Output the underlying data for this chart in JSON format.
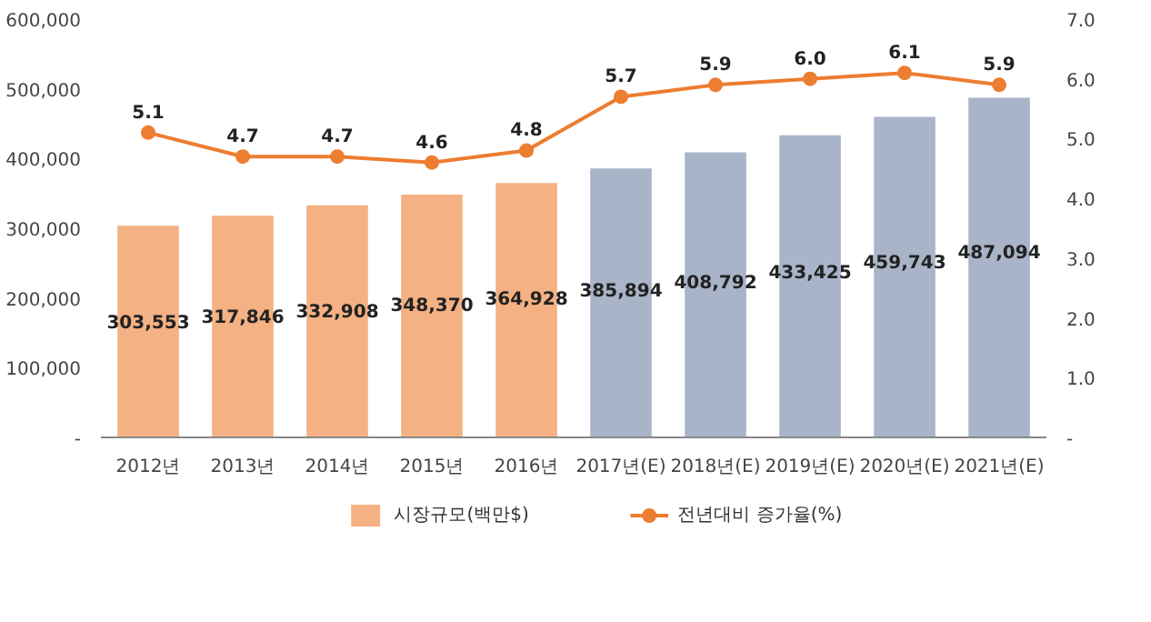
{
  "chart_data": {
    "type": "bar",
    "categories": [
      "2012년",
      "2013년",
      "2014년",
      "2015년",
      "2016년",
      "2017년(E)",
      "2018년(E)",
      "2019년(E)",
      "2020년(E)",
      "2021년(E)"
    ],
    "series": [
      {
        "name": "시장규모(백만$)",
        "color": "#f4b183",
        "colors": [
          "#f4b183",
          "#f4b183",
          "#f4b183",
          "#f4b183",
          "#f4b183",
          "#a9b4c8",
          "#a9b4c8",
          "#a9b4c8",
          "#a9b4c8",
          "#a9b4c8"
        ],
        "values": [
          303553,
          317846,
          332908,
          348370,
          364928,
          385894,
          408792,
          433425,
          459743,
          487094
        ],
        "value_labels": [
          "303,553",
          "317,846",
          "332,908",
          "348,370",
          "364,928",
          "385,894",
          "408,792",
          "433,425",
          "459,743",
          "487,094"
        ]
      },
      {
        "name": "전년대비 증가율(%)",
        "type": "line",
        "axis": "y2",
        "color": "#ed7d31",
        "values": [
          5.1,
          4.7,
          4.7,
          4.6,
          4.8,
          5.7,
          5.9,
          6.0,
          6.1,
          5.9
        ],
        "value_labels": [
          "5.1",
          "4.7",
          "4.7",
          "4.6",
          "4.8",
          "5.7",
          "5.9",
          "6.0",
          "6.1",
          "5.9"
        ]
      }
    ],
    "ylim": [
      0,
      600000
    ],
    "yticks": [
      {
        "value": 0,
        "label": "-"
      },
      {
        "value": 100000,
        "label": "100,000"
      },
      {
        "value": 200000,
        "label": "200,000"
      },
      {
        "value": 300000,
        "label": "300,000"
      },
      {
        "value": 400000,
        "label": "400,000"
      },
      {
        "value": 500000,
        "label": "500,000"
      },
      {
        "value": 600000,
        "label": "600,000"
      }
    ],
    "y2lim": [
      0,
      7
    ],
    "y2ticks": [
      {
        "value": 0,
        "label": "-"
      },
      {
        "value": 1,
        "label": "1.0"
      },
      {
        "value": 2,
        "label": "2.0"
      },
      {
        "value": 3,
        "label": "3.0"
      },
      {
        "value": 4,
        "label": "4.0"
      },
      {
        "value": 5,
        "label": "5.0"
      },
      {
        "value": 6,
        "label": "6.0"
      },
      {
        "value": 7,
        "label": "7.0"
      }
    ],
    "marker": "circle",
    "grid": false,
    "legend": "bottom"
  }
}
